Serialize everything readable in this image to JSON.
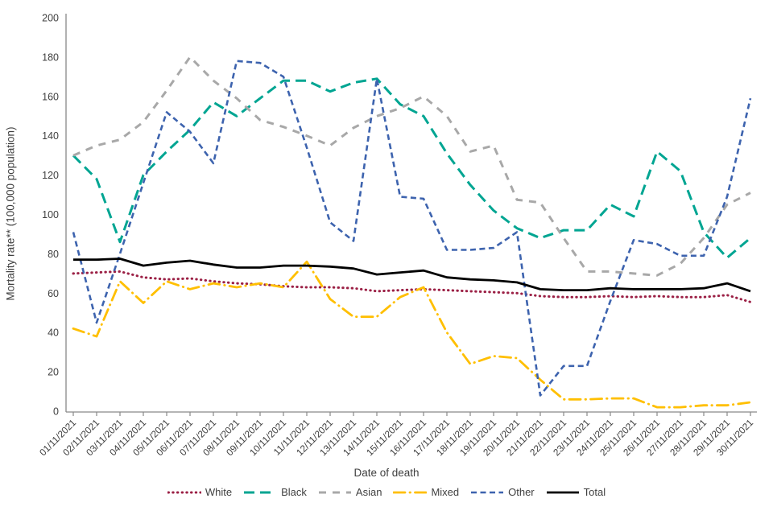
{
  "chart_data": {
    "type": "line",
    "title": "",
    "xlabel": "Date of death",
    "ylabel": "Mortality rate** (100,000 population)",
    "ylim": [
      0,
      200
    ],
    "ytick_step": 20,
    "yticks": [
      0,
      20,
      40,
      60,
      80,
      100,
      120,
      140,
      160,
      180,
      200
    ],
    "grid": false,
    "legend_position": "bottom",
    "categories": [
      "01/11/2021",
      "02/11/2021",
      "03/11/2021",
      "04/11/2021",
      "05/11/2021",
      "06/11/2021",
      "07/11/2021",
      "08/11/2021",
      "09/11/2021",
      "10/11/2021",
      "11/11/2021",
      "12/11/2021",
      "13/11/2021",
      "14/11/2021",
      "15/11/2021",
      "16/11/2021",
      "17/11/2021",
      "18/11/2021",
      "19/11/2021",
      "20/11/2021",
      "21/11/2021",
      "22/11/2021",
      "23/11/2021",
      "24/11/2021",
      "25/11/2021",
      "26/11/2021",
      "27/11/2021",
      "28/11/2021",
      "29/11/2021",
      "30/11/2021"
    ],
    "series": [
      {
        "name": "White",
        "color": "#9B2045",
        "dash": "dotted",
        "values": [
          70,
          70.5,
          71,
          68,
          67,
          67.5,
          66,
          65,
          64.5,
          63.5,
          63,
          63,
          62.5,
          61,
          61.5,
          62,
          61.5,
          61,
          60.5,
          60,
          58.5,
          58,
          58,
          58.5,
          58,
          58.5,
          58,
          58,
          59,
          55.5
        ]
      },
      {
        "name": "Black",
        "color": "#00A592",
        "dash": "long-dash",
        "values": [
          130,
          118,
          86,
          120,
          132,
          143,
          157,
          150,
          159,
          168,
          168,
          162.5,
          167,
          169,
          156,
          150,
          131,
          115,
          102,
          93,
          88,
          92,
          92,
          105,
          99,
          132,
          122,
          91,
          78,
          88
        ]
      },
      {
        "name": "Asian",
        "color": "#A8A8A8",
        "dash": "dash",
        "values": [
          130,
          135,
          138,
          147,
          163,
          180,
          168,
          159,
          148,
          144.5,
          140,
          135,
          144,
          150,
          154,
          160,
          150,
          132,
          135,
          107.5,
          106,
          88,
          71,
          71,
          70,
          69,
          75,
          88,
          105,
          111
        ]
      },
      {
        "name": "Mixed",
        "color": "#FFBF00",
        "dash": "dash-dot",
        "values": [
          42,
          38,
          66,
          55,
          66,
          62,
          65,
          63,
          65,
          63,
          76,
          57,
          48,
          48,
          58,
          63,
          40,
          24,
          28,
          27,
          16,
          6,
          6,
          6.5,
          6.5,
          2,
          2,
          3,
          3,
          4.5
        ]
      },
      {
        "name": "Other",
        "color": "#3D63AE",
        "dash": "medium-dash",
        "values": [
          91,
          45,
          80,
          116,
          152,
          142,
          126,
          178,
          177,
          170,
          134,
          96,
          86.5,
          169,
          109,
          108,
          82,
          82,
          83,
          91,
          8,
          23,
          23,
          56,
          87,
          85,
          79,
          79,
          109,
          159
        ]
      },
      {
        "name": "Total",
        "color": "#000000",
        "dash": "solid",
        "values": [
          77,
          77,
          77.5,
          74,
          75.5,
          76.5,
          74.5,
          73,
          73,
          74,
          74,
          73.5,
          72.5,
          69.5,
          70.5,
          71.5,
          68,
          67,
          66.5,
          65.5,
          62,
          61.5,
          61.5,
          62.5,
          62,
          62,
          62,
          62.5,
          65,
          61
        ]
      }
    ]
  },
  "axis": {
    "line_color": "#898989",
    "text_color": "#3f3f3f"
  }
}
